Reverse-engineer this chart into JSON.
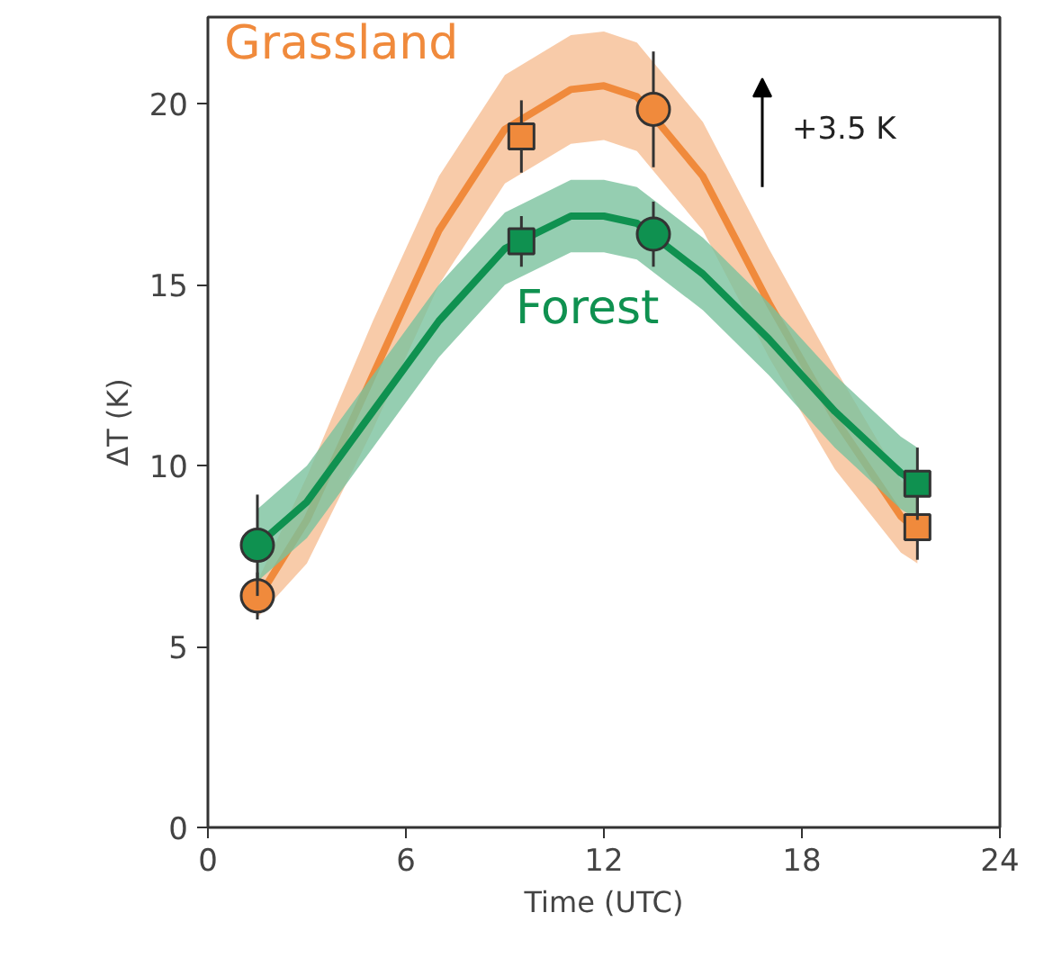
{
  "chart_data": {
    "type": "line",
    "xlabel": "Time (UTC)",
    "ylabel": "ΔT (K)",
    "xlim": [
      0,
      24
    ],
    "ylim": [
      0,
      22.4
    ],
    "xticks": [
      0,
      6,
      12,
      18,
      24
    ],
    "yticks": [
      0,
      5,
      10,
      15,
      20
    ],
    "grid": false,
    "legend": false,
    "annotations": [
      "+3.5 K"
    ],
    "series": [
      {
        "name": "Grassland",
        "type": "line",
        "color": "#f08a3c",
        "x": [
          1.5,
          3,
          5,
          7,
          9,
          11,
          12,
          13,
          15,
          17,
          19,
          21,
          21.5
        ],
        "values": [
          6.3,
          8.5,
          12.5,
          16.5,
          19.3,
          20.4,
          20.5,
          20.2,
          18.0,
          14.5,
          11.3,
          8.6,
          8.2
        ],
        "lower": [
          5.8,
          7.3,
          11.0,
          15.0,
          17.8,
          18.9,
          19.0,
          18.7,
          16.5,
          13.0,
          9.9,
          7.6,
          7.3
        ],
        "upper": [
          6.8,
          9.7,
          14.0,
          18.0,
          20.8,
          21.9,
          22.0,
          21.7,
          19.5,
          16.0,
          12.7,
          9.6,
          9.1
        ]
      },
      {
        "name": "Forest",
        "type": "line",
        "color": "#0f9150",
        "x": [
          1.5,
          3,
          5,
          7,
          9,
          11,
          12,
          13,
          15,
          17,
          19,
          21,
          21.5
        ],
        "values": [
          7.8,
          9.0,
          11.5,
          14.0,
          16.0,
          16.9,
          16.9,
          16.7,
          15.3,
          13.5,
          11.5,
          9.8,
          9.5
        ],
        "lower": [
          6.8,
          8.0,
          10.5,
          13.0,
          15.0,
          15.9,
          15.9,
          15.7,
          14.3,
          12.5,
          10.5,
          8.8,
          8.5
        ],
        "upper": [
          8.8,
          10.0,
          12.5,
          15.0,
          17.0,
          17.9,
          17.9,
          17.7,
          16.3,
          14.5,
          12.5,
          10.8,
          10.5
        ]
      },
      {
        "type": "scatter",
        "marker": "circle",
        "color": "#f08a3c",
        "x": [
          1.5,
          13.5
        ],
        "values": [
          6.4,
          19.85
        ],
        "errors": [
          0.65,
          1.6
        ]
      },
      {
        "type": "scatter",
        "marker": "square",
        "color": "#f08a3c",
        "x": [
          9.5,
          21.5
        ],
        "values": [
          19.1,
          8.3
        ],
        "errors": [
          1.0,
          0.9
        ]
      },
      {
        "type": "scatter",
        "marker": "circle",
        "color": "#0f9150",
        "x": [
          1.5,
          13.5
        ],
        "values": [
          7.8,
          16.4
        ],
        "errors": [
          1.4,
          0.9
        ]
      },
      {
        "type": "scatter",
        "marker": "square",
        "color": "#0f9150",
        "x": [
          9.5,
          21.5
        ],
        "values": [
          16.2,
          9.5
        ],
        "errors": [
          0.7,
          1.0
        ]
      }
    ]
  }
}
